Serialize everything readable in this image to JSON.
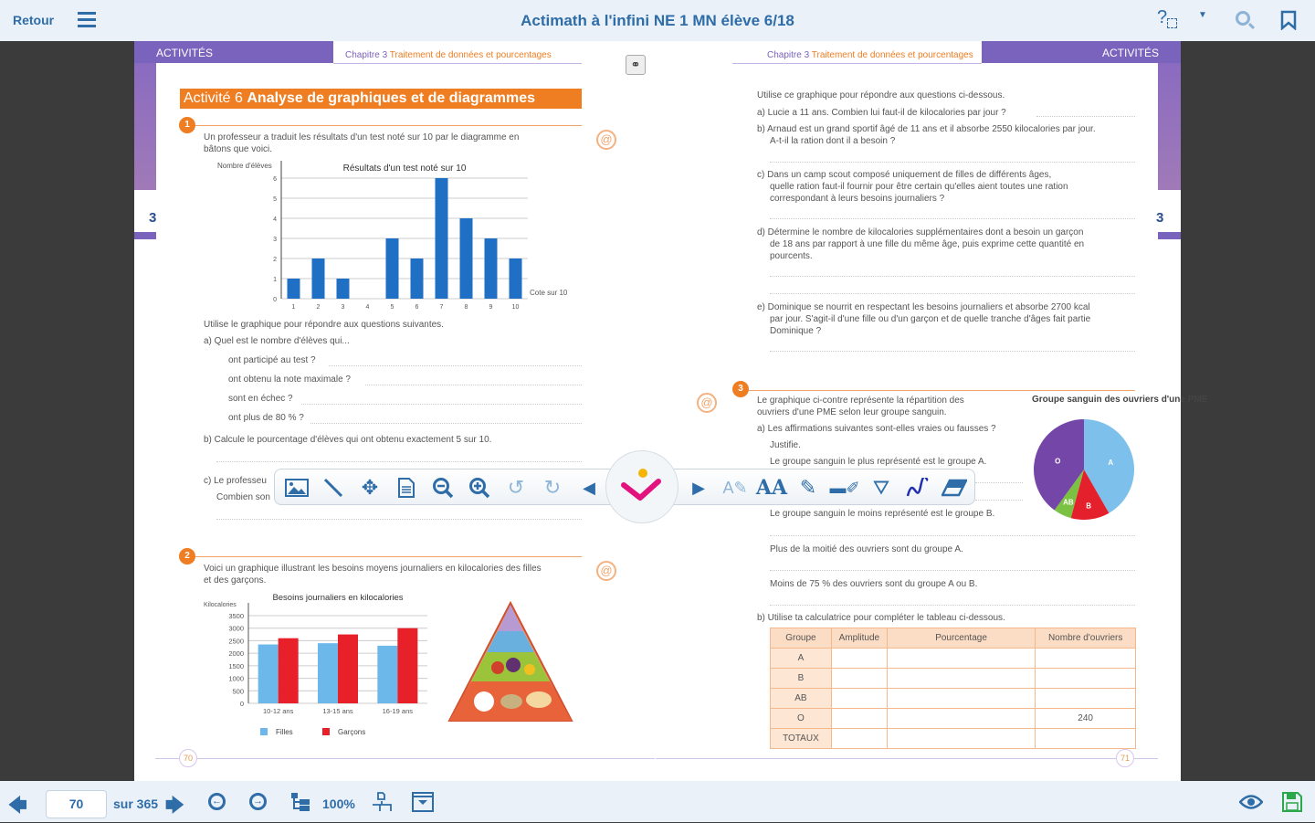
{
  "topbar": {
    "back": "Retour",
    "title": "Actimath à l'infini NE 1 MN élève 6/18"
  },
  "left_page": {
    "header": "ACTIVITÉS",
    "chapter_num": "Chapitre 3",
    "chapter_title": "Traitement de données et pourcentages",
    "side_number": "3",
    "activity_label": "Activité 6",
    "activity_title": "Analyse de graphiques et de diagrammes",
    "ex1": {
      "num": "1",
      "intro1": "Un professeur a traduit les résultats d'un test noté sur 10 par le diagramme en",
      "intro2": "bâtons que voici.",
      "q_intro": "Utilise le graphique pour répondre aux questions suivantes.",
      "qa": "a)  Quel est le nombre d'élèves qui...",
      "items": [
        "ont participé au test ?",
        "ont obtenu la note maximale ?",
        "sont en échec ?",
        "ont plus de 80 % ?"
      ],
      "qb": "b)  Calcule le pourcentage d'élèves qui ont obtenu exactement 5 sur 10.",
      "qc1": "c)  Le professeu",
      "qc2": "Combien son"
    },
    "ex2": {
      "num": "2",
      "intro1": "Voici un graphique illustrant les besoins moyens journaliers en kilocalories des filles",
      "intro2": "et des garçons."
    },
    "page_number": "70"
  },
  "right_page": {
    "header": "ACTIVITÉS",
    "chapter_num": "Chapitre 3",
    "chapter_title": "Traitement de données et pourcentages",
    "side_number": "3",
    "intro": "Utilise ce graphique pour répondre aux questions ci-dessous.",
    "qa": "a)  Lucie a 11 ans. Combien lui faut-il de kilocalories par jour ?",
    "qb": [
      "b)  Arnaud est un grand sportif âgé de 11 ans et il absorbe 2550 kilocalories par jour.",
      "A-t-il la ration dont il a besoin ?"
    ],
    "qc": [
      "c)  Dans un camp scout composé uniquement de filles de différents âges,",
      "quelle ration faut-il fournir pour être certain qu'elles aient toutes une ration",
      "correspondant à leurs besoins journaliers ?"
    ],
    "qd": [
      "d)  Détermine le nombre de kilocalories supplémentaires dont a besoin un garçon",
      "de 18 ans par rapport à une fille du même âge, puis exprime cette quantité en",
      "pourcents."
    ],
    "qe": [
      "e)  Dominique se nourrit en respectant les besoins journaliers et absorbe 2700 kcal",
      "par jour. S'agit-il d'une fille ou d'un garçon et de quelle tranche d'âges fait partie",
      "Dominique ?"
    ],
    "ex3": {
      "num": "3",
      "intro1": "Le graphique ci-contre représente la répartition des",
      "intro2": "ouvriers d'une PME selon leur groupe sanguin.",
      "qa": "a)  Les affirmations suivantes sont-elles vraies ou fausses ?",
      "justify": "Justifie.",
      "statements": [
        "Le groupe sanguin le plus représenté est le groupe A.",
        "Le groupe sanguin le moins représenté est le groupe B.",
        "Plus de la moitié des ouvriers sont du groupe A.",
        "Moins de 75 % des ouvriers sont du groupe A ou B."
      ],
      "qb": "b)  Utilise ta calculatrice pour compléter le tableau ci-dessous.",
      "table": {
        "headers": [
          "Groupe",
          "Amplitude",
          "Pourcentage",
          "Nombre d'ouvriers"
        ],
        "rows": [
          [
            "A",
            "",
            "",
            ""
          ],
          [
            "B",
            "",
            "",
            ""
          ],
          [
            "AB",
            "",
            "",
            ""
          ],
          [
            "O",
            "",
            "",
            "240"
          ],
          [
            "TOTAUX",
            "",
            "",
            ""
          ]
        ]
      }
    },
    "page_number": "71"
  },
  "toolbar": {
    "icons": [
      "image-icon",
      "line-icon",
      "move-icon",
      "document-icon",
      "zoom-out-icon",
      "zoom-in-icon",
      "undo-icon",
      "redo-icon",
      "prev-icon",
      "validate-icon",
      "next-icon",
      "text-style-icon",
      "font-icon",
      "pencil-icon",
      "highlighter-icon",
      "compass-icon",
      "freehand-icon",
      "eraser-icon"
    ]
  },
  "bottombar": {
    "page_input": "70",
    "page_total": "sur 365",
    "zoom": "100%"
  },
  "colors": {
    "accent": "#2e6da8",
    "purple": "#7a63bd",
    "orange": "#ef7d22",
    "bar_blue": "#1f6fc5",
    "filles": "#6cb8ea",
    "garcons": "#e8202a"
  },
  "chart_data": [
    {
      "type": "bar",
      "title": "Résultats d'un test noté sur 10",
      "xlabel": "Cote sur 10",
      "ylabel": "Nombre d'élèves",
      "categories": [
        "1",
        "2",
        "3",
        "4",
        "5",
        "6",
        "7",
        "8",
        "9",
        "10"
      ],
      "values": [
        1,
        2,
        1,
        0,
        3,
        2,
        6,
        4,
        3,
        2
      ],
      "ylim": [
        0,
        6
      ],
      "yticks": [
        "0",
        "1",
        "2",
        "3",
        "4",
        "5",
        "6"
      ],
      "grid": true
    },
    {
      "type": "bar",
      "title": "Besoins journaliers en kilocalories",
      "ylabel": "Kilocalories",
      "categories": [
        "10-12 ans",
        "13-15 ans",
        "16-19 ans"
      ],
      "series": [
        {
          "name": "Filles",
          "values": [
            2350,
            2400,
            2300
          ]
        },
        {
          "name": "Garçons",
          "values": [
            2600,
            2750,
            3000
          ]
        }
      ],
      "ylim": [
        0,
        3500
      ],
      "yticks": [
        "0",
        "500",
        "1000",
        "1500",
        "2000",
        "2500",
        "3000",
        "3500"
      ],
      "legend": "bottom",
      "grid": true
    },
    {
      "type": "pie",
      "title": "Groupe sanguin des ouvriers d'une PME",
      "labels": [
        "A",
        "B",
        "AB",
        "O"
      ],
      "values": [
        41.7,
        12.5,
        5.8,
        40.0
      ],
      "colors": [
        "#7dc0ec",
        "#e3202b",
        "#7cc242",
        "#7446a8"
      ]
    }
  ]
}
